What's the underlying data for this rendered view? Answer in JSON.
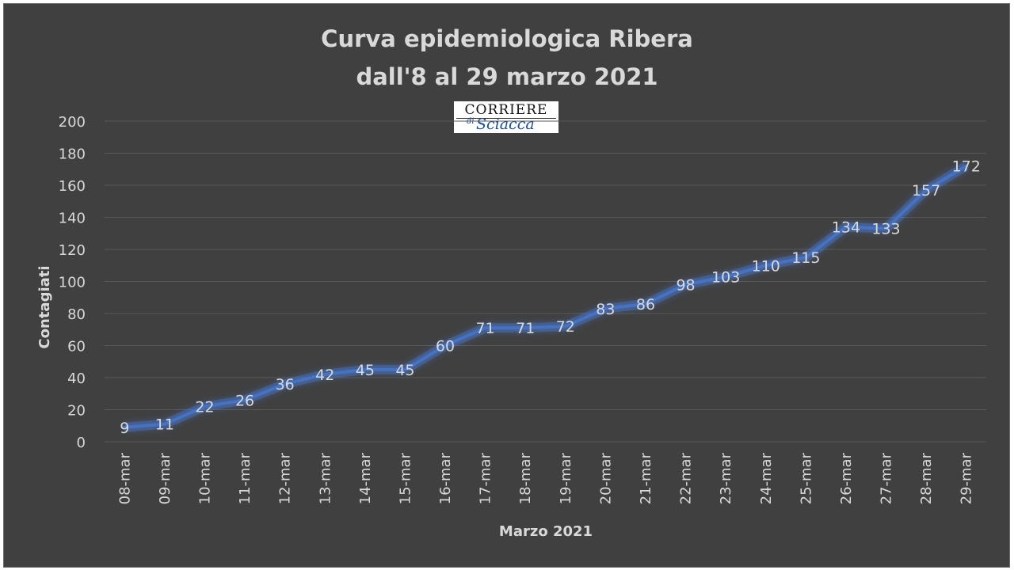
{
  "chart_data": {
    "type": "line",
    "title": "Curva epidemiologica Ribera",
    "subtitle": "dall'8 al 29 marzo 2021",
    "xlabel": "Marzo 2021",
    "ylabel": "Contagiati",
    "ylim": [
      0,
      200
    ],
    "yticks": [
      0,
      20,
      40,
      60,
      80,
      100,
      120,
      140,
      160,
      180,
      200
    ],
    "grid": true,
    "categories": [
      "08-mar",
      "09-mar",
      "10-mar",
      "11-mar",
      "12-mar",
      "13-mar",
      "14-mar",
      "15-mar",
      "16-mar",
      "17-mar",
      "18-mar",
      "19-mar",
      "20-mar",
      "21-mar",
      "22-mar",
      "23-mar",
      "24-mar",
      "25-mar",
      "26-mar",
      "27-mar",
      "28-mar",
      "29-mar"
    ],
    "values": [
      9,
      11,
      22,
      26,
      36,
      42,
      45,
      45,
      60,
      71,
      71,
      72,
      83,
      86,
      98,
      103,
      110,
      115,
      134,
      133,
      157,
      172
    ],
    "line_color": "#4472c4"
  },
  "logo": {
    "line1": "CORRIERE",
    "line2_prefix": "di",
    "line2": "Sciacca"
  },
  "colors": {
    "background": "#404040",
    "text": "#d9d9d9",
    "grid": "#595959"
  }
}
